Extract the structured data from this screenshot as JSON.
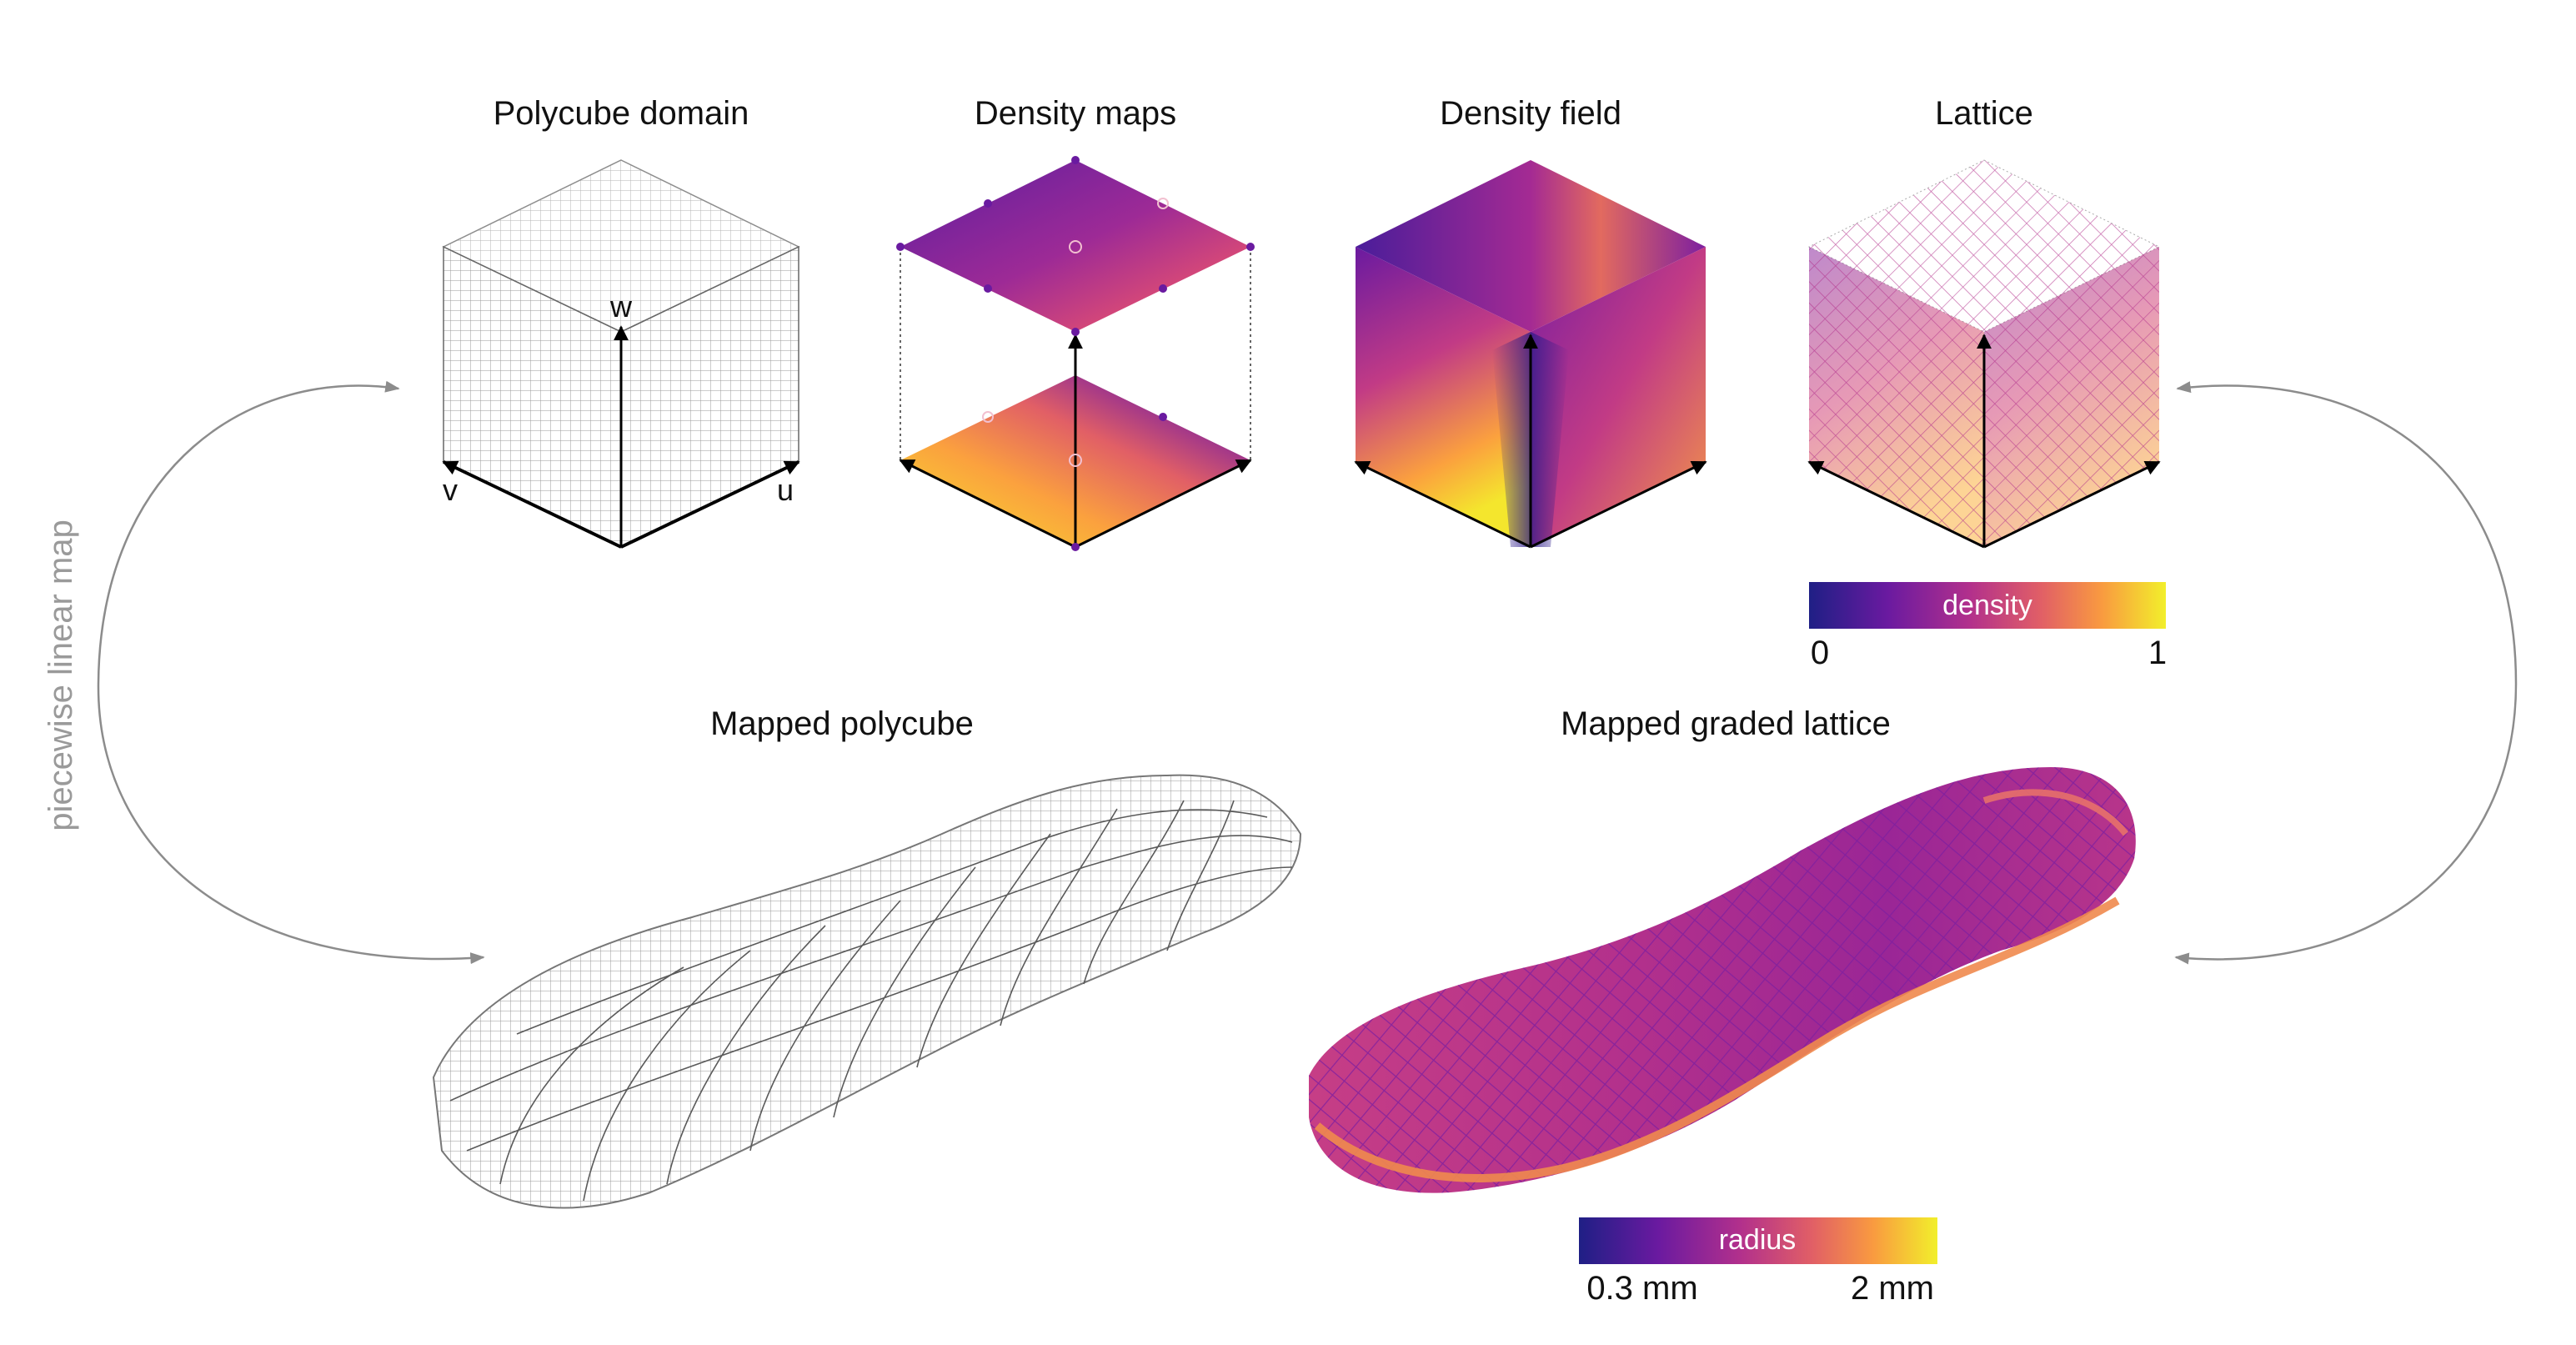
{
  "panels": {
    "polycube_domain": {
      "title": "Polycube domain",
      "axis_w": "w",
      "axis_v": "v",
      "axis_u": "u"
    },
    "density_maps": {
      "title": "Density maps"
    },
    "density_field": {
      "title": "Density field"
    },
    "lattice": {
      "title": "Lattice"
    },
    "mapped_polycube": {
      "title": "Mapped polycube"
    },
    "mapped_graded_lattice": {
      "title": "Mapped graded lattice"
    }
  },
  "side_label": "piecewise linear map",
  "colorbars": {
    "density": {
      "label": "density",
      "min": "0",
      "max": "1"
    },
    "radius": {
      "label": "radius",
      "min": "0.3 mm",
      "max": "2 mm"
    }
  },
  "colors": {
    "plasma": [
      "#2d1b8a",
      "#6a1aa0",
      "#a42a93",
      "#d2467a",
      "#ee6f5a",
      "#fba13e",
      "#f4e62d"
    ],
    "wire": "#8a8a8a",
    "arrow_gray": "#8c8c8c"
  }
}
